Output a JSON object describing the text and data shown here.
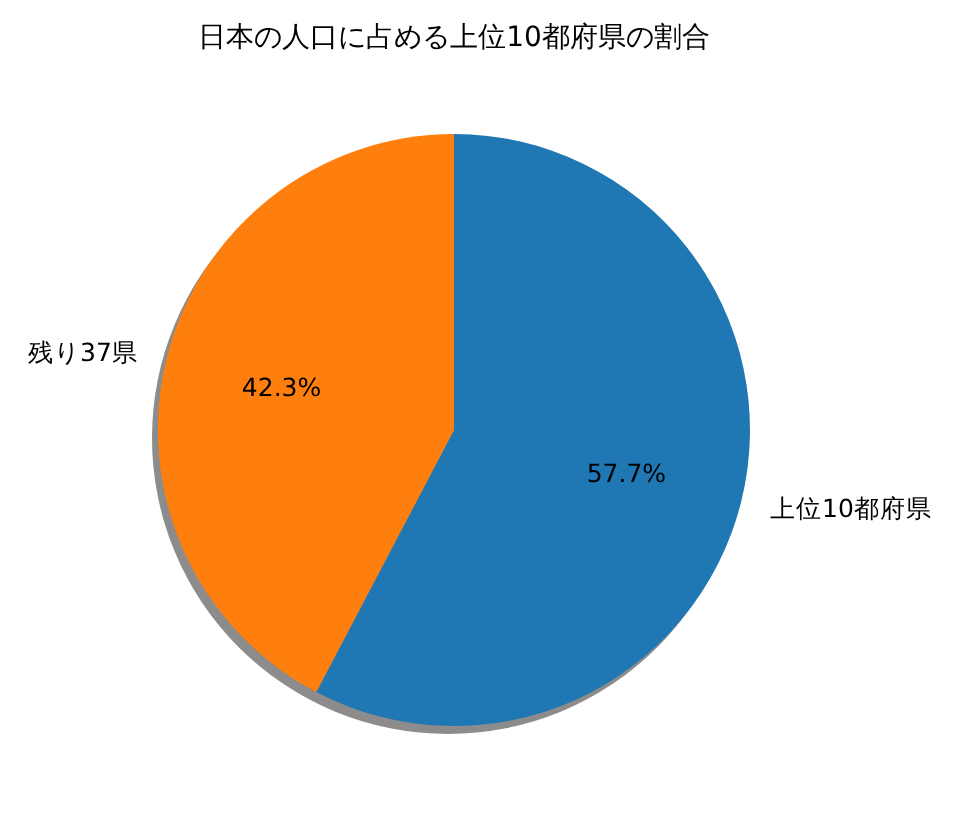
{
  "chart_data": {
    "type": "pie",
    "title": "日本の人口に占める上位10都府県の割合",
    "categories": [
      "上位10都府県",
      "残り37県"
    ],
    "values": [
      57.7,
      42.3
    ],
    "colors": [
      "#1f77b4",
      "#ff7f0e"
    ],
    "value_labels": [
      "57.7%",
      "42.3%"
    ]
  }
}
